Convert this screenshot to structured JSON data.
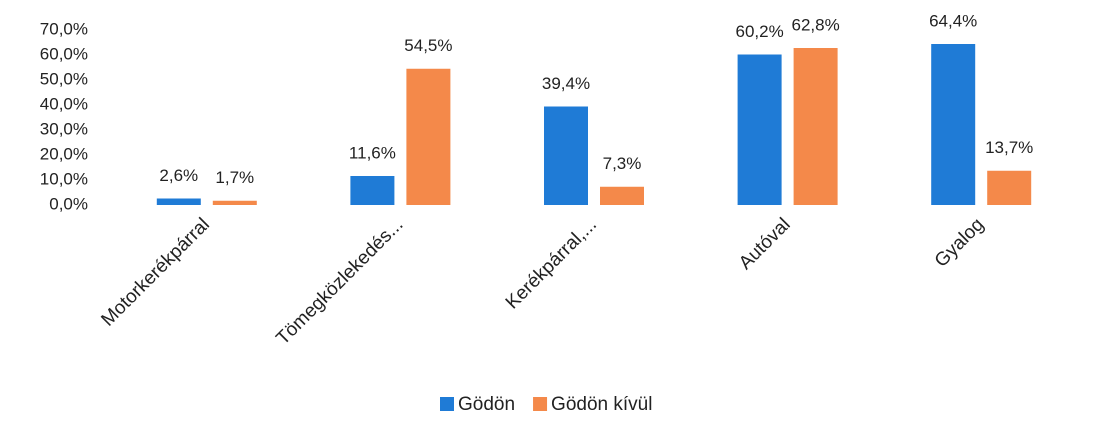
{
  "chart_data": {
    "type": "bar",
    "categories": [
      "Motorkerékpárral",
      "Tömegközlekedés...",
      "Kerékpárral,...",
      "Autóval",
      "Gyalog"
    ],
    "series": [
      {
        "name": "Gödön",
        "color": "#1f7bd6",
        "values": [
          2.6,
          11.6,
          39.4,
          60.2,
          64.4
        ],
        "value_labels": [
          "2,6%",
          "11,6%",
          "39,4%",
          "60,2%",
          "64,4%"
        ]
      },
      {
        "name": "Gödön kívül",
        "color": "#f4894a",
        "values": [
          1.7,
          54.5,
          7.3,
          62.8,
          13.7
        ],
        "value_labels": [
          "1,7%",
          "54,5%",
          "7,3%",
          "62,8%",
          "13,7%"
        ]
      }
    ],
    "ylim": [
      0,
      70
    ],
    "yticks": [
      {
        "value": 0,
        "label": "0,0%"
      },
      {
        "value": 10,
        "label": "10,0%"
      },
      {
        "value": 20,
        "label": "20,0%"
      },
      {
        "value": 30,
        "label": "30,0%"
      },
      {
        "value": 40,
        "label": "40,0%"
      },
      {
        "value": 50,
        "label": "50,0%"
      },
      {
        "value": 60,
        "label": "60,0%"
      },
      {
        "value": 70,
        "label": "70,0%"
      }
    ],
    "grid": false,
    "legend": "bottom"
  }
}
